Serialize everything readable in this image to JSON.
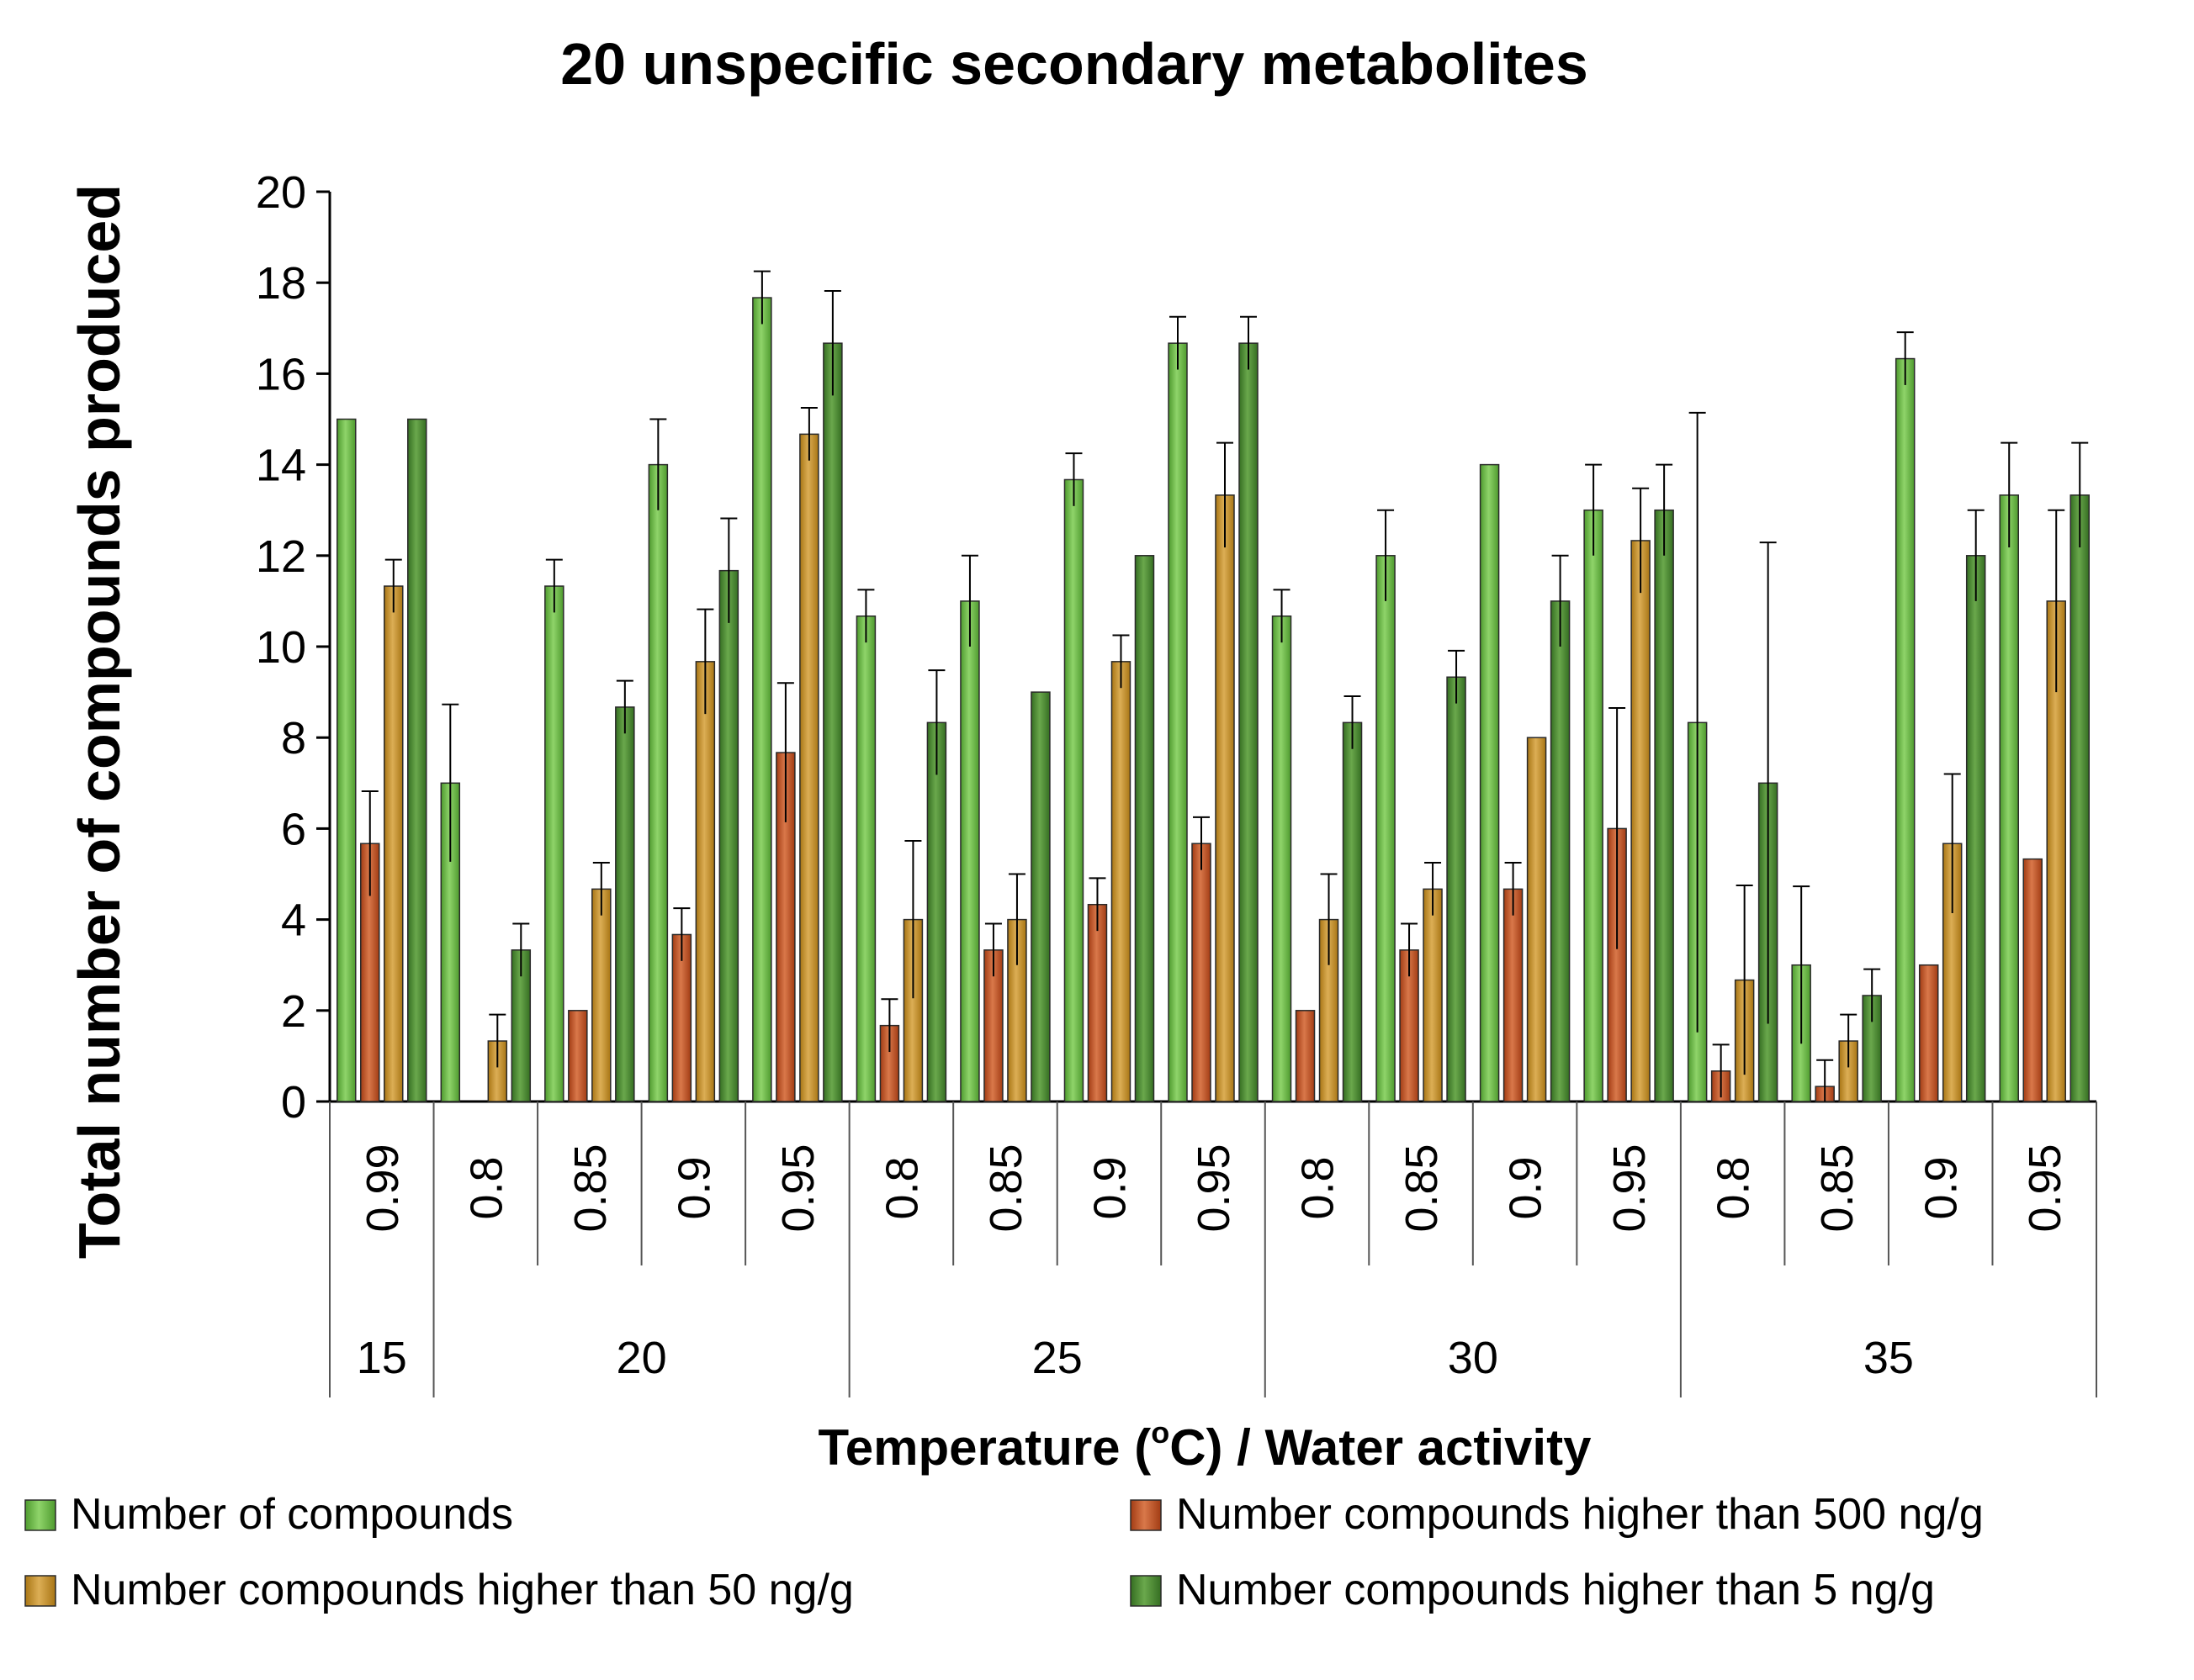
{
  "chart_data": {
    "type": "bar",
    "title": "20 unspecific secondary metabolites",
    "ylabel": "Total number of compounds produced",
    "xlabel_main": "Temperature (",
    "xlabel_sup": "o",
    "xlabel_end": "C)  / Water activity",
    "ylim": [
      0,
      20
    ],
    "yticks": [
      0,
      2,
      4,
      6,
      8,
      10,
      12,
      14,
      16,
      18,
      20
    ],
    "groups": [
      {
        "label": "15",
        "size": 1
      },
      {
        "label": "20",
        "size": 4
      },
      {
        "label": "25",
        "size": 4
      },
      {
        "label": "30",
        "size": 4
      },
      {
        "label": "35",
        "size": 4
      }
    ],
    "categories": [
      "0.99",
      "0.8",
      "0.85",
      "0.9",
      "0.95",
      "0.8",
      "0.85",
      "0.9",
      "0.95",
      "0.8",
      "0.85",
      "0.9",
      "0.95",
      "0.8",
      "0.85",
      "0.9",
      "0.95"
    ],
    "series": [
      {
        "name": "Number of compounds",
        "color": "#70b84a",
        "values": [
          15,
          7,
          11.33,
          14,
          17.67,
          10.67,
          11,
          13.67,
          16.67,
          10.67,
          12,
          14,
          13,
          8.33,
          3,
          16.33,
          13.33
        ],
        "errors": [
          0,
          1.73,
          0.58,
          1,
          0.58,
          0.58,
          1,
          0.58,
          0.58,
          0.58,
          1,
          0,
          1,
          6.81,
          1.73,
          0.58,
          1.15
        ]
      },
      {
        "name": "Number compounds higher than 500 ng/g",
        "color": "#bf5a2e",
        "values": [
          5.67,
          0,
          2,
          3.67,
          7.67,
          1.67,
          3.33,
          4.33,
          5.67,
          2,
          3.33,
          4.67,
          6,
          0.67,
          0.33,
          3,
          5.33
        ],
        "errors": [
          1.15,
          0,
          0,
          0.58,
          1.53,
          0.58,
          0.58,
          0.58,
          0.58,
          0,
          0.58,
          0.58,
          2.65,
          0.58,
          0.58,
          0,
          0
        ]
      },
      {
        "name": "Number compounds higher than 50 ng/g",
        "color": "#bf9030",
        "values": [
          11.33,
          1.33,
          4.67,
          9.67,
          14.67,
          4,
          4,
          9.67,
          13.33,
          4,
          4.67,
          8,
          12.33,
          2.67,
          1.33,
          5.67,
          11
        ],
        "errors": [
          0.58,
          0.58,
          0.58,
          1.15,
          0.58,
          1.73,
          1,
          0.58,
          1.15,
          1,
          0.58,
          0,
          1.15,
          2.08,
          0.58,
          1.53,
          2
        ]
      },
      {
        "name": "Number compounds higher than 5 ng/g",
        "color": "#4f8a35",
        "values": [
          15,
          3.33,
          8.67,
          11.67,
          16.67,
          8.33,
          9,
          12,
          16.67,
          8.33,
          9.33,
          11,
          13,
          7,
          2.33,
          12,
          13.33
        ],
        "errors": [
          0,
          0.58,
          0.58,
          1.15,
          1.15,
          1.15,
          0,
          0,
          0.58,
          0.58,
          0.58,
          1,
          1,
          5.29,
          0.58,
          1,
          1.15
        ]
      }
    ],
    "legend": {
      "items": [
        "Number of compounds",
        "Number compounds higher than 500 ng/g",
        "Number compounds higher than 50 ng/g",
        "Number compounds higher than 5 ng/g"
      ],
      "position": "bottom"
    }
  }
}
